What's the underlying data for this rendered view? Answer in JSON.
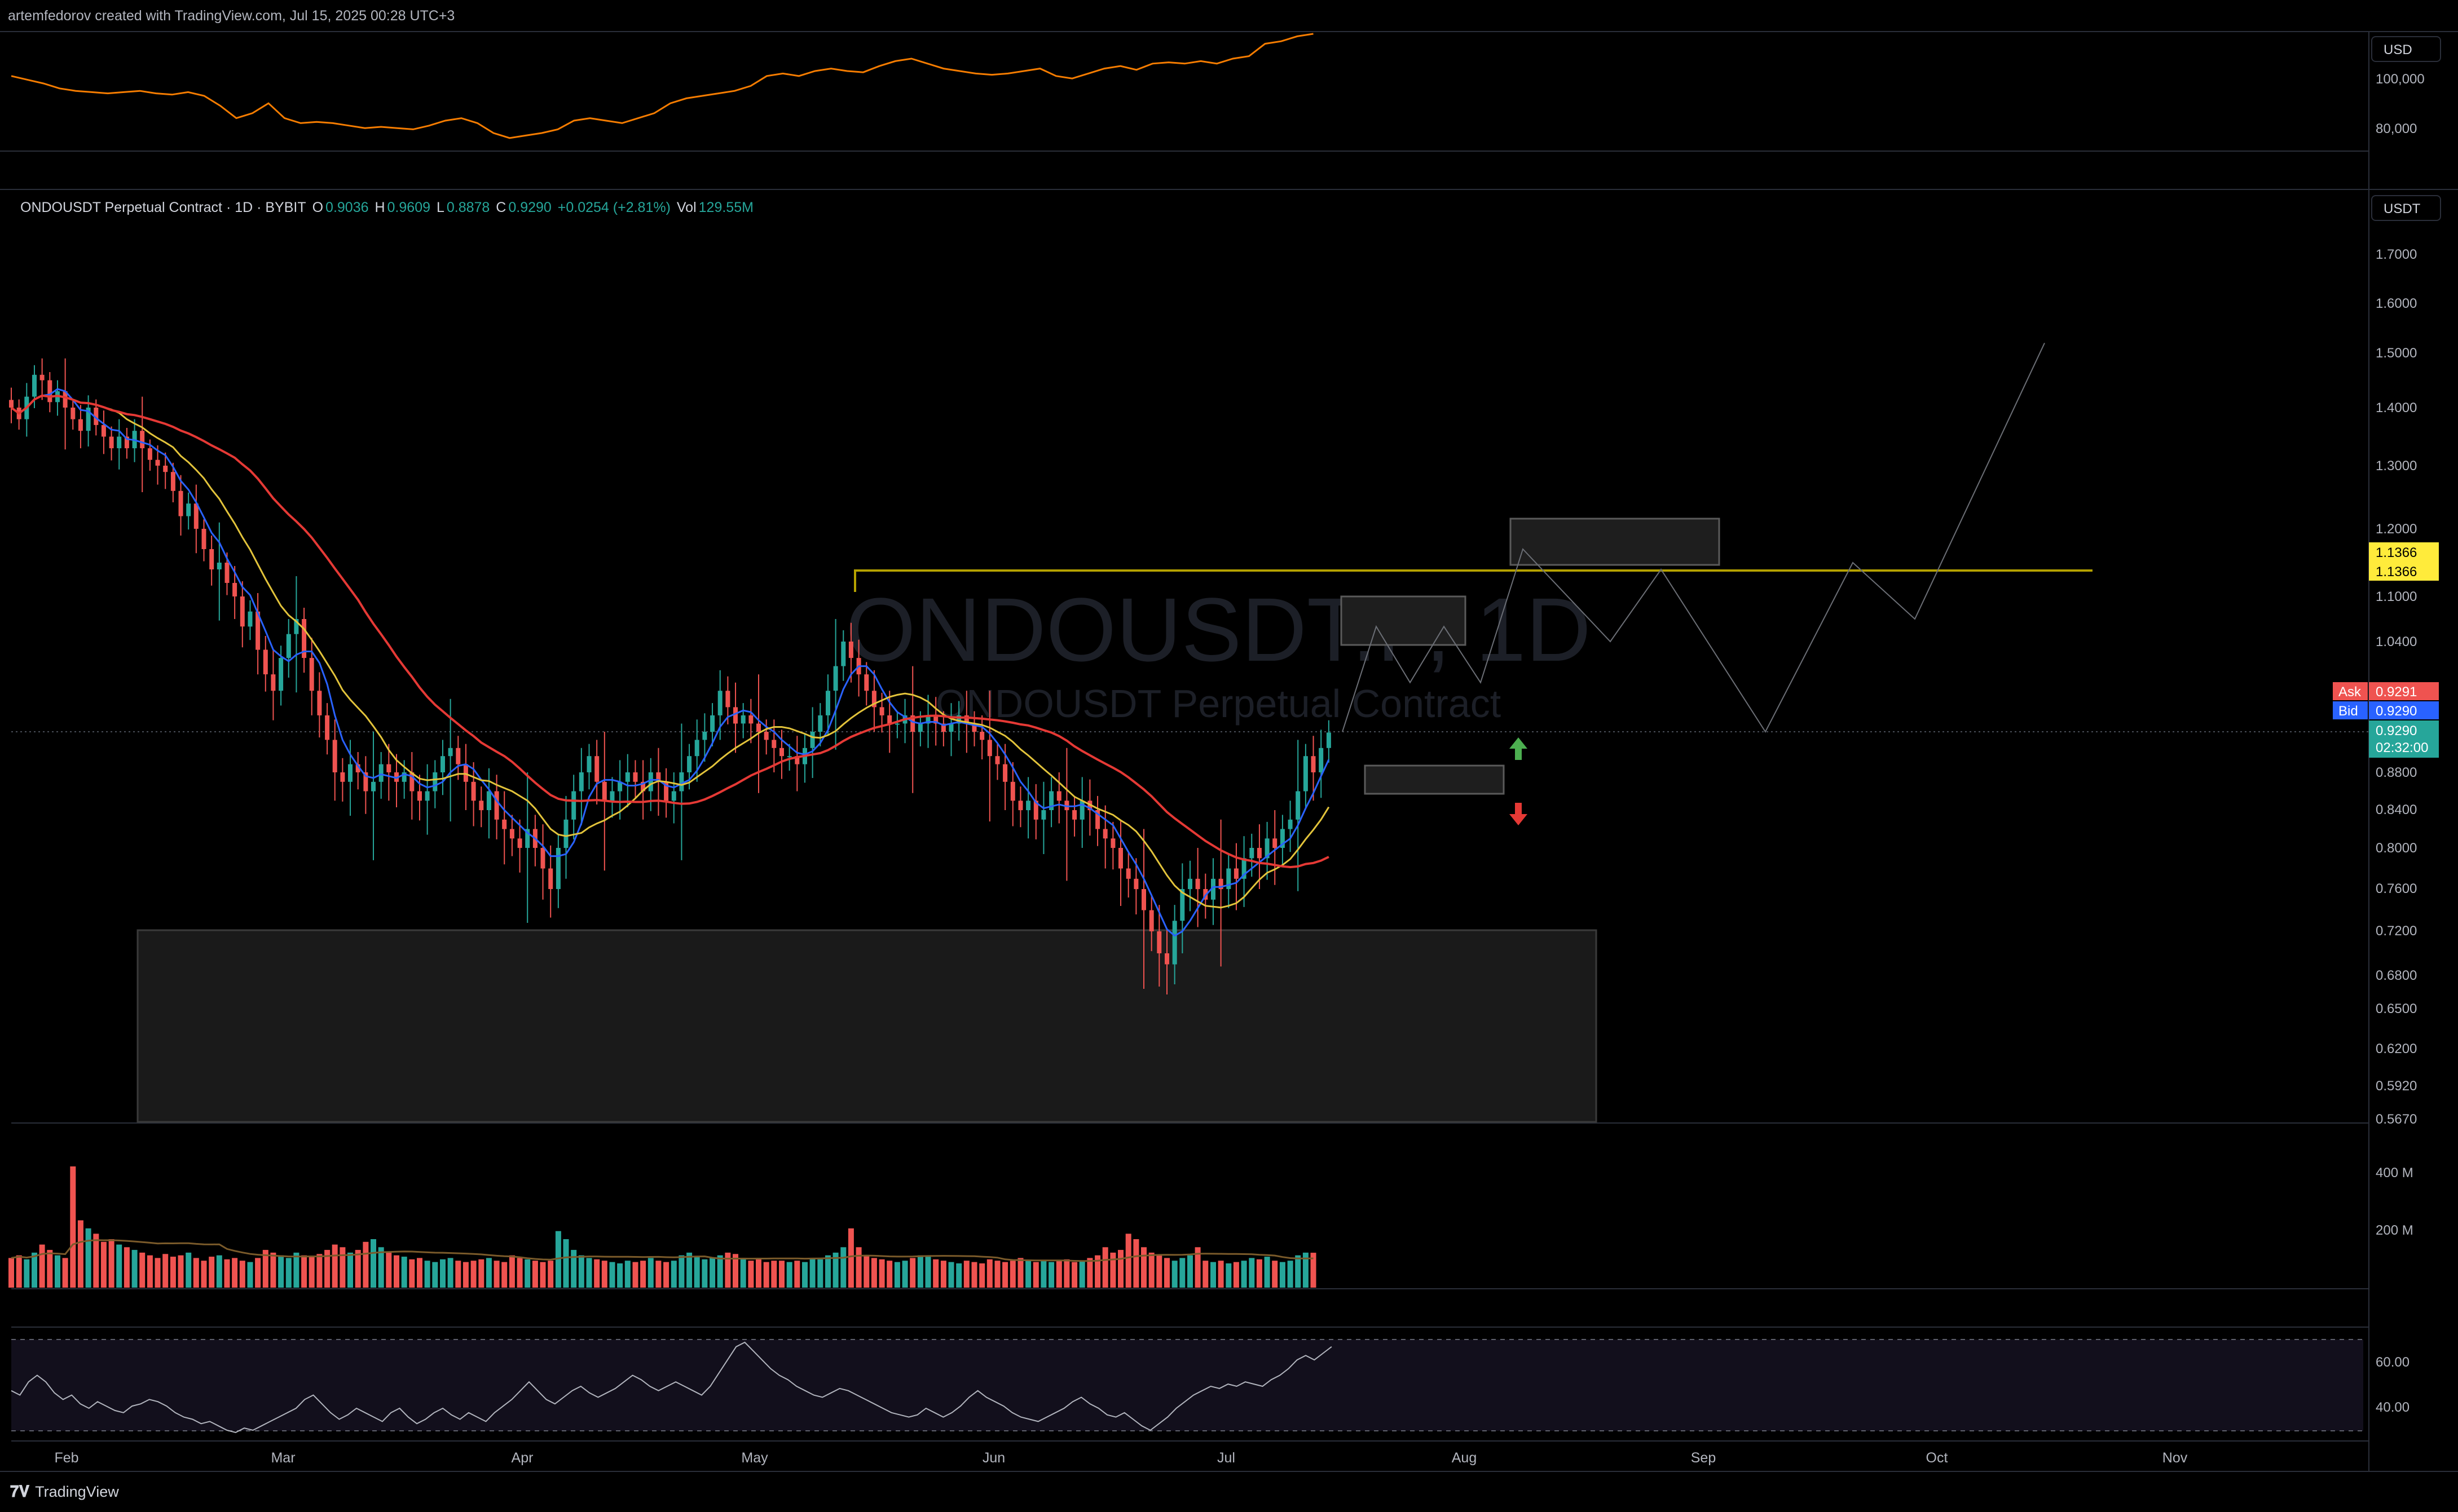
{
  "header": {
    "caption": "artemfedorov created with TradingView.com, Jul 15, 2025 00:28 UTC+3"
  },
  "legend": {
    "symbol": "ONDOUSDT Perpetual Contract · 1D · BYBIT",
    "o_label": "O",
    "o": "0.9036",
    "h_label": "H",
    "h": "0.9609",
    "l_label": "L",
    "l": "0.8878",
    "c_label": "C",
    "c": "0.9290",
    "change": "+0.0254 (+2.81%)",
    "vol_label": "Vol",
    "vol": "129.55M"
  },
  "watermark": {
    "line1": "ONDOUSDT.P, 1D",
    "line2": "ONDOUSDT Perpetual Contract"
  },
  "top_pane": {
    "currency": "USD",
    "ticks": [
      "100,000",
      "80,000"
    ]
  },
  "main_pane": {
    "currency": "USDT",
    "ticks": [
      "1.7000",
      "1.6000",
      "1.5000",
      "1.4000",
      "1.3000",
      "1.2000",
      "1.1000",
      "1.0400",
      "0.8800",
      "0.8400",
      "0.8000",
      "0.7600",
      "0.7200",
      "0.6800",
      "0.6500",
      "0.6200",
      "0.5920",
      "0.5670"
    ],
    "labels": {
      "level1": "1.1366",
      "level2": "1.1366",
      "ask_label": "Ask",
      "ask": "0.9291",
      "bid_label": "Bid",
      "bid": "0.9290",
      "last": "0.9290",
      "countdown": "02:32:00"
    }
  },
  "volume_pane": {
    "ticks": [
      "400 M",
      "200 M"
    ]
  },
  "rsi_pane": {
    "ticks": [
      "60.00",
      "40.00"
    ]
  },
  "time_axis": [
    "Feb",
    "Mar",
    "Apr",
    "May",
    "Jun",
    "Jul",
    "Aug",
    "Sep",
    "Oct",
    "Nov"
  ],
  "footer": {
    "brand": "TradingView"
  },
  "colors": {
    "up": "#26a69a",
    "down": "#ef5350",
    "btc": "#f57c00",
    "ma_fast": "#2962ff",
    "ma_mid": "#e2c33b",
    "ma_slow": "#e53935",
    "level": "#b5a200",
    "ask": "#ef5350",
    "bid": "#2962ff",
    "last": "#26a69a"
  },
  "chart_data": [
    {
      "type": "line",
      "title": "",
      "ylabel": "USD",
      "ylim": [
        75000,
        125000
      ],
      "series": [
        {
          "values": [
            103000,
            101500,
            100000,
            98000,
            97000,
            96500,
            96000,
            96500,
            97000,
            96000,
            95500,
            96500,
            95000,
            91000,
            86000,
            88000,
            92000,
            86000,
            84000,
            84500,
            84000,
            83000,
            82000,
            82500,
            82000,
            81500,
            83000,
            85000,
            86000,
            84000,
            80000,
            78000,
            79000,
            80000,
            81500,
            85000,
            86000,
            85000,
            84000,
            86000,
            88000,
            92000,
            94000,
            95000,
            96000,
            97000,
            99000,
            103000,
            104000,
            103000,
            105000,
            106000,
            105000,
            104500,
            107000,
            109000,
            110000,
            108000,
            106000,
            105000,
            104000,
            103500,
            104000,
            105000,
            106000,
            103000,
            102000,
            104000,
            106000,
            107000,
            105500,
            108000,
            108500,
            108000,
            109000,
            108000,
            110000,
            111000,
            116000,
            117000,
            119000,
            120000
          ]
        }
      ]
    },
    {
      "type": "candlestick",
      "title": "",
      "ylabel": "USDT",
      "ylim": [
        0.567,
        1.75
      ],
      "x_start": "Jan 13, 2025",
      "x_end": "Jul 14, 2025",
      "close": [
        1.4,
        1.38,
        1.42,
        1.46,
        1.45,
        1.41,
        1.43,
        1.4,
        1.38,
        1.36,
        1.4,
        1.37,
        1.35,
        1.33,
        1.35,
        1.33,
        1.36,
        1.33,
        1.31,
        1.3,
        1.29,
        1.26,
        1.22,
        1.24,
        1.2,
        1.17,
        1.14,
        1.15,
        1.12,
        1.1,
        1.06,
        1.08,
        1.03,
        1.0,
        0.98,
        1.02,
        1.05,
        1.07,
        1.02,
        0.98,
        0.95,
        0.92,
        0.88,
        0.87,
        0.89,
        0.88,
        0.86,
        0.87,
        0.89,
        0.88,
        0.87,
        0.88,
        0.86,
        0.85,
        0.86,
        0.88,
        0.9,
        0.91,
        0.89,
        0.87,
        0.85,
        0.84,
        0.86,
        0.83,
        0.82,
        0.81,
        0.8,
        0.82,
        0.8,
        0.78,
        0.76,
        0.8,
        0.83,
        0.86,
        0.88,
        0.9,
        0.87,
        0.85,
        0.86,
        0.87,
        0.88,
        0.87,
        0.86,
        0.88,
        0.87,
        0.85,
        0.86,
        0.88,
        0.9,
        0.92,
        0.93,
        0.95,
        0.98,
        0.96,
        0.94,
        0.95,
        0.94,
        0.93,
        0.92,
        0.91,
        0.9,
        0.9,
        0.89,
        0.91,
        0.93,
        0.95,
        0.98,
        1.01,
        1.04,
        1.02,
        1.0,
        0.98,
        0.96,
        0.95,
        0.94,
        0.94,
        0.95,
        0.93,
        0.94,
        0.95,
        0.94,
        0.93,
        0.94,
        0.95,
        0.94,
        0.93,
        0.92,
        0.9,
        0.89,
        0.87,
        0.85,
        0.84,
        0.85,
        0.83,
        0.84,
        0.86,
        0.85,
        0.84,
        0.83,
        0.85,
        0.84,
        0.82,
        0.81,
        0.8,
        0.78,
        0.77,
        0.76,
        0.74,
        0.72,
        0.7,
        0.69,
        0.73,
        0.76,
        0.77,
        0.76,
        0.75,
        0.77,
        0.76,
        0.78,
        0.77,
        0.79,
        0.8,
        0.79,
        0.81,
        0.8,
        0.82,
        0.83,
        0.86,
        0.9,
        0.88,
        0.91,
        0.929
      ]
    },
    {
      "type": "bar",
      "title": "",
      "ylabel": "Volume",
      "ylim": [
        0,
        500000000
      ],
      "values": [
        110,
        120,
        105,
        130,
        160,
        140,
        120,
        110,
        450,
        250,
        220,
        200,
        170,
        180,
        160,
        150,
        140,
        130,
        120,
        110,
        125,
        115,
        120,
        130,
        110,
        100,
        115,
        120,
        105,
        110,
        100,
        95,
        110,
        140,
        130,
        120,
        110,
        130,
        120,
        115,
        125,
        140,
        160,
        150,
        130,
        140,
        170,
        180,
        150,
        130,
        120,
        115,
        105,
        110,
        100,
        95,
        105,
        110,
        100,
        95,
        100,
        105,
        110,
        100,
        95,
        120,
        110,
        105,
        100,
        95,
        100,
        210,
        180,
        140,
        120,
        110,
        105,
        100,
        95,
        90,
        100,
        95,
        100,
        110,
        100,
        95,
        100,
        120,
        130,
        115,
        105,
        110,
        120,
        130,
        125,
        110,
        100,
        105,
        95,
        100,
        100,
        95,
        100,
        95,
        110,
        105,
        120,
        130,
        150,
        220,
        150,
        120,
        110,
        105,
        100,
        95,
        100,
        110,
        120,
        115,
        105,
        100,
        95,
        90,
        100,
        95,
        90,
        105,
        100,
        95,
        100,
        110,
        100,
        95,
        100,
        95,
        100,
        105,
        95,
        100,
        110,
        120,
        150,
        130,
        140,
        200,
        180,
        150,
        130,
        120,
        110,
        100,
        110,
        120,
        150,
        100,
        95,
        100,
        90,
        95,
        100,
        110,
        105,
        115,
        100,
        95,
        100,
        120,
        130,
        129.55
      ]
    },
    {
      "type": "line",
      "title": "",
      "ylabel": "RSI",
      "ylim": [
        25,
        75
      ],
      "series": [
        {
          "values": [
            48,
            46,
            52,
            55,
            52,
            47,
            44,
            46,
            42,
            40,
            43,
            41,
            39,
            38,
            41,
            42,
            44,
            43,
            41,
            38,
            36,
            35,
            33,
            34,
            32,
            30,
            29,
            31,
            30,
            32,
            34,
            36,
            38,
            40,
            44,
            46,
            42,
            38,
            35,
            37,
            40,
            38,
            36,
            34,
            38,
            40,
            36,
            33,
            35,
            38,
            40,
            37,
            35,
            38,
            36,
            34,
            38,
            41,
            44,
            48,
            52,
            48,
            44,
            42,
            45,
            48,
            50,
            47,
            45,
            47,
            49,
            52,
            55,
            53,
            50,
            48,
            50,
            52,
            50,
            48,
            46,
            50,
            56,
            62,
            68,
            70,
            66,
            62,
            58,
            55,
            53,
            50,
            48,
            46,
            45,
            47,
            49,
            48,
            46,
            44,
            42,
            40,
            38,
            37,
            36,
            37,
            40,
            38,
            36,
            38,
            41,
            45,
            48,
            45,
            43,
            41,
            38,
            36,
            35,
            34,
            36,
            38,
            40,
            43,
            45,
            42,
            40,
            37,
            36,
            38,
            35,
            32,
            30,
            33,
            36,
            40,
            43,
            46,
            48,
            50,
            49,
            51,
            50,
            52,
            51,
            50,
            53,
            55,
            58,
            62,
            64,
            62,
            65,
            68
          ]
        }
      ]
    },
    {
      "type": "line",
      "title": "",
      "ylabel": "Projection (USDT)",
      "series": [
        {
          "values": [
            0.93,
            1.06,
            0.99,
            1.06,
            0.99,
            1.17,
            1.04,
            1.14,
            0.93,
            1.15,
            1.07,
            1.52
          ]
        }
      ]
    }
  ]
}
